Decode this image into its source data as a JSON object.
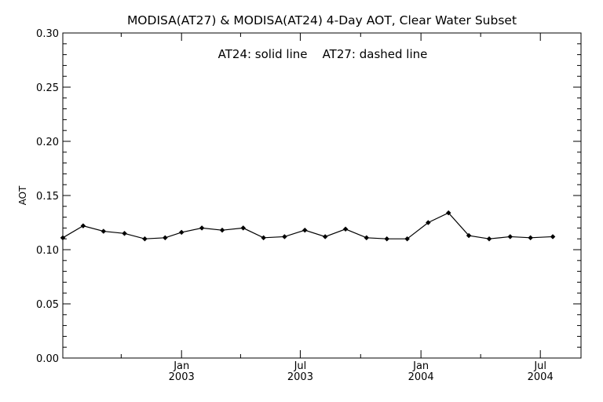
{
  "chart_data": {
    "type": "line",
    "title": "MODISA(AT27) & MODISA(AT24) 4-Day AOT, Clear Water Subset",
    "annotation": "AT24: solid line    AT27: dashed line",
    "xlabel": "",
    "ylabel": "AOT",
    "ylim": [
      0.0,
      0.3
    ],
    "yticks": [
      {
        "value": 0.0,
        "label": "0.00"
      },
      {
        "value": 0.05,
        "label": "0.05"
      },
      {
        "value": 0.1,
        "label": "0.10"
      },
      {
        "value": 0.15,
        "label": "0.15"
      },
      {
        "value": 0.2,
        "label": "0.20"
      },
      {
        "value": 0.25,
        "label": "0.25"
      },
      {
        "value": 0.3,
        "label": "0.30"
      }
    ],
    "xlim": [
      "2002-07-04",
      "2004-09-01"
    ],
    "xticks": [
      {
        "date": "2003-01-01",
        "label_top": "Jan",
        "label_bottom": "2003"
      },
      {
        "date": "2003-07-01",
        "label_top": "Jul",
        "label_bottom": "2003"
      },
      {
        "date": "2004-01-01",
        "label_top": "Jan",
        "label_bottom": "2004"
      },
      {
        "date": "2004-07-01",
        "label_top": "Jul",
        "label_bottom": "2004"
      }
    ],
    "grid": false,
    "series": [
      {
        "line_style": "solid",
        "color": "#000000",
        "marker": "diamond",
        "points": [
          {
            "x": "2002-07-04",
            "y": 0.111
          },
          {
            "x": "2002-08-04",
            "y": 0.122
          },
          {
            "x": "2002-09-04",
            "y": 0.117
          },
          {
            "x": "2002-10-06",
            "y": 0.115
          },
          {
            "x": "2002-11-06",
            "y": 0.11
          },
          {
            "x": "2002-12-07",
            "y": 0.111
          },
          {
            "x": "2003-01-01",
            "y": 0.116
          },
          {
            "x": "2003-02-01",
            "y": 0.12
          },
          {
            "x": "2003-03-04",
            "y": 0.118
          },
          {
            "x": "2003-04-05",
            "y": 0.12
          },
          {
            "x": "2003-05-06",
            "y": 0.111
          },
          {
            "x": "2003-06-07",
            "y": 0.112
          },
          {
            "x": "2003-07-08",
            "y": 0.118
          },
          {
            "x": "2003-08-08",
            "y": 0.112
          },
          {
            "x": "2003-09-08",
            "y": 0.119
          },
          {
            "x": "2003-10-10",
            "y": 0.111
          },
          {
            "x": "2003-11-10",
            "y": 0.11
          },
          {
            "x": "2003-12-11",
            "y": 0.11
          },
          {
            "x": "2004-01-12",
            "y": 0.125
          },
          {
            "x": "2004-02-12",
            "y": 0.134
          },
          {
            "x": "2004-03-14",
            "y": 0.113
          },
          {
            "x": "2004-04-14",
            "y": 0.11
          },
          {
            "x": "2004-05-16",
            "y": 0.112
          },
          {
            "x": "2004-06-16",
            "y": 0.111
          },
          {
            "x": "2004-07-20",
            "y": 0.112
          }
        ]
      }
    ]
  }
}
